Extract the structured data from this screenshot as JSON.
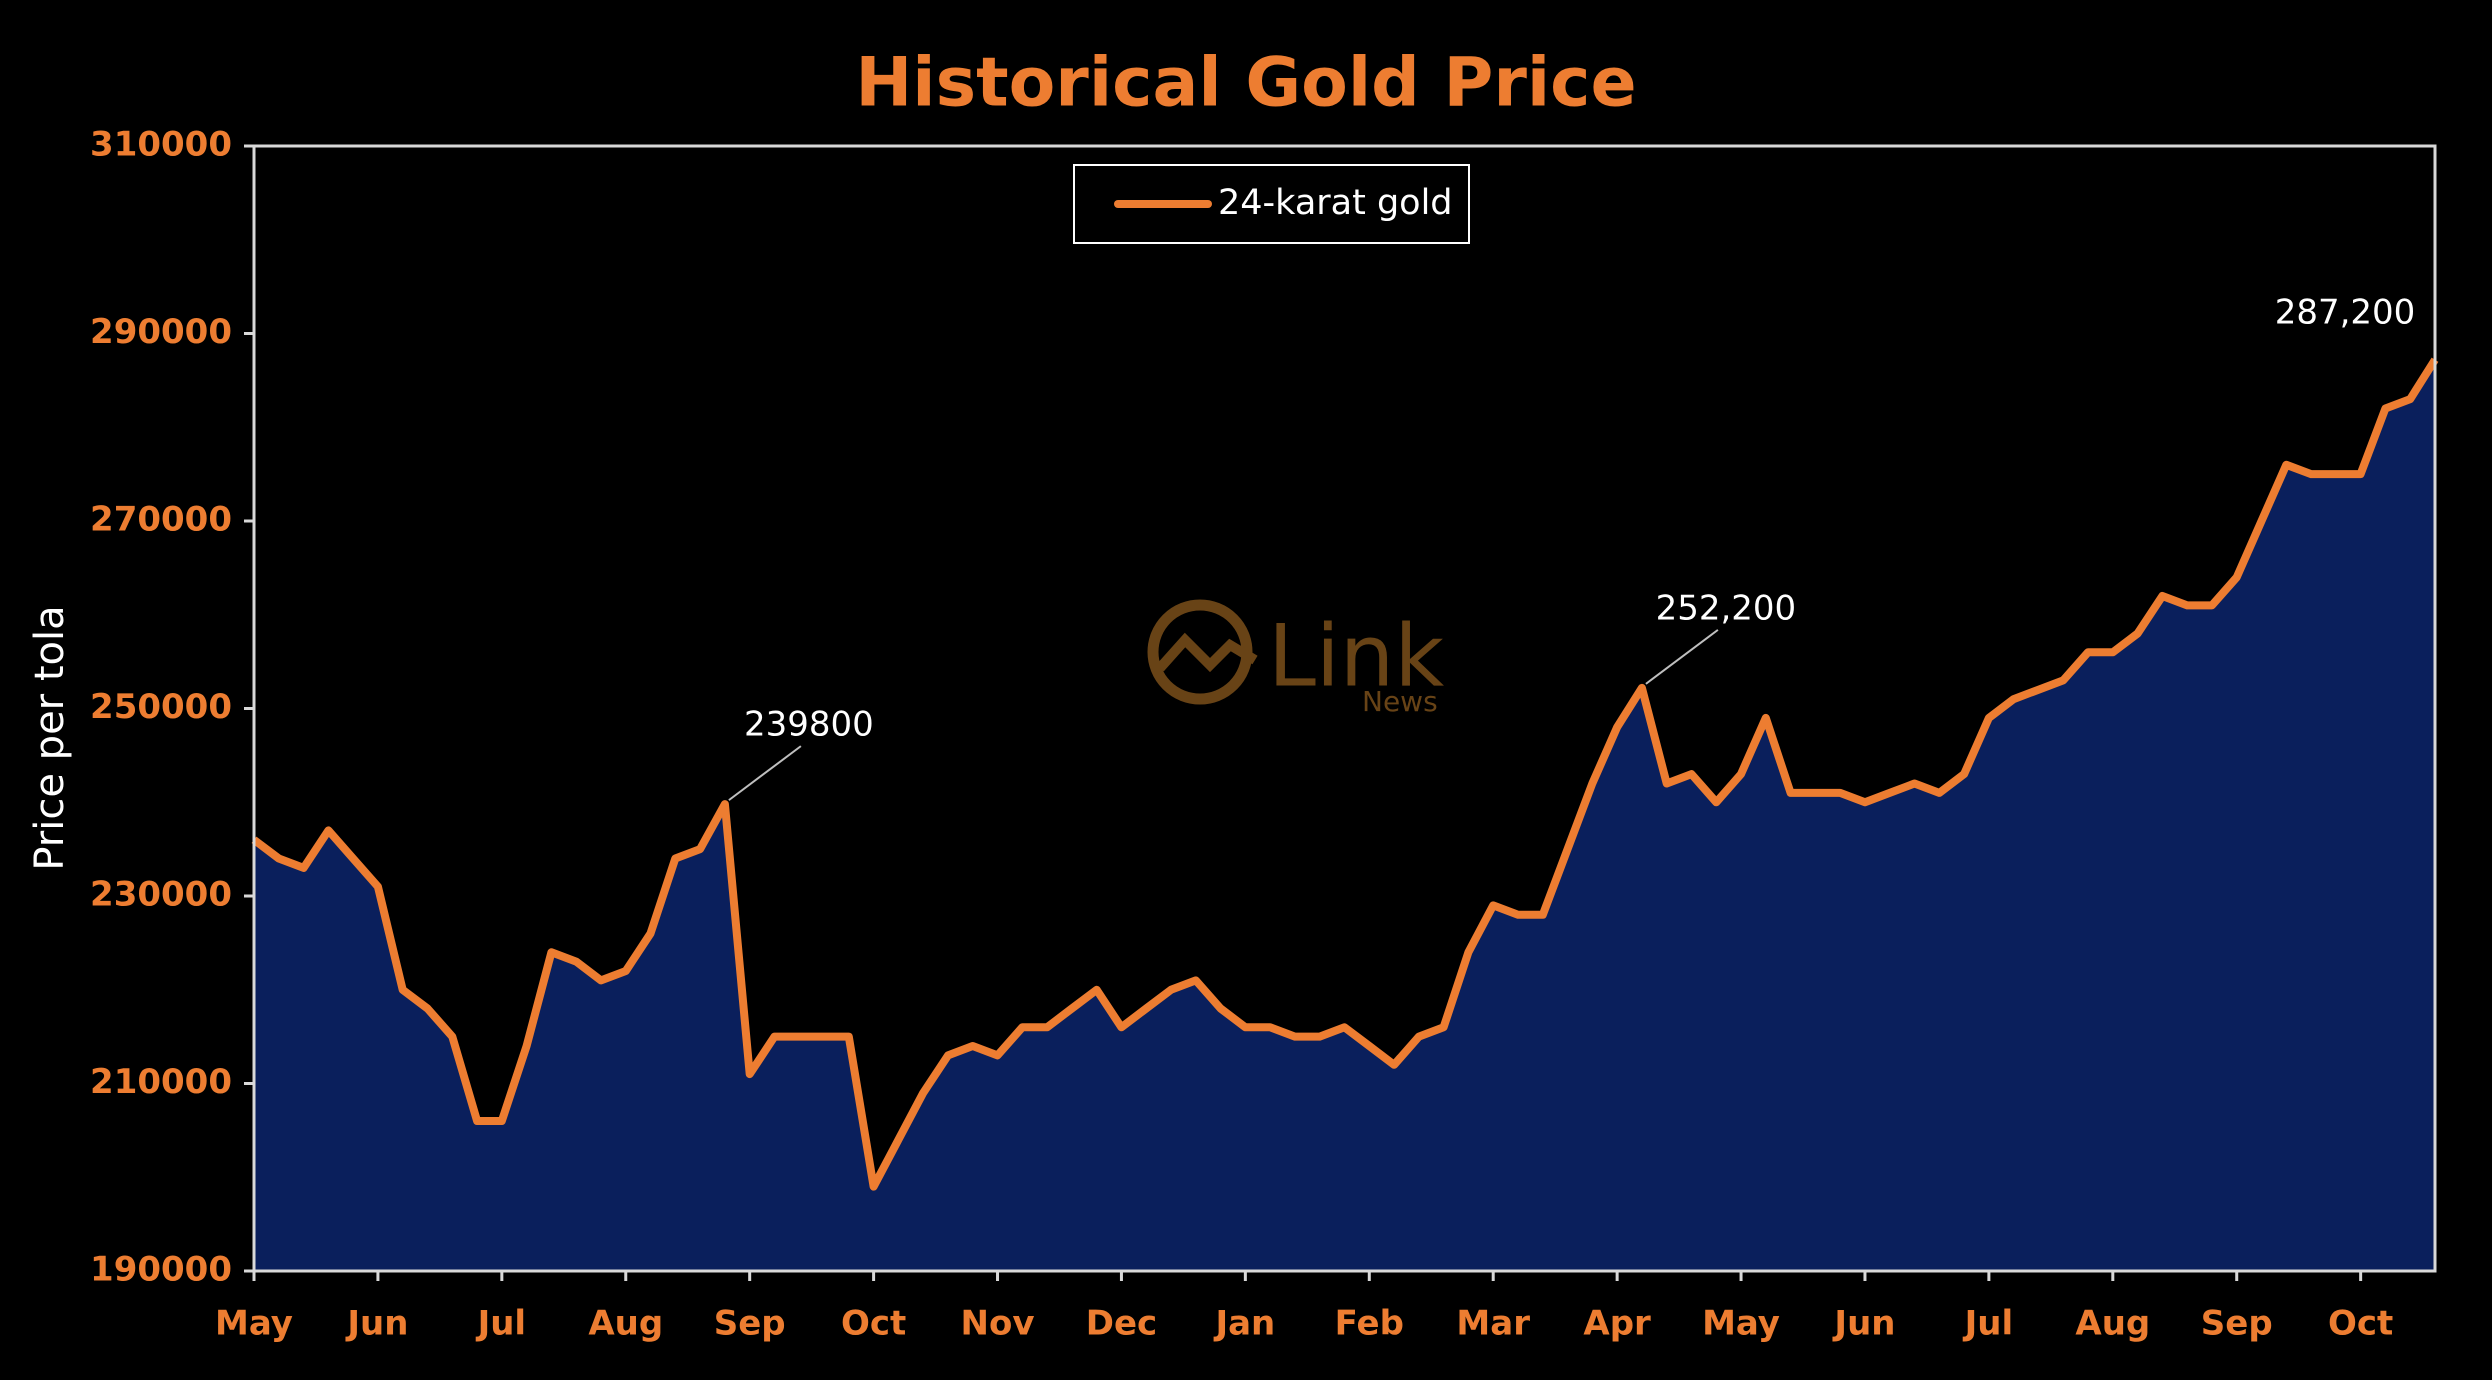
{
  "chart_data": {
    "type": "area-line",
    "title": "Historical Gold Price",
    "y_label": "Price per tola",
    "watermark": {
      "name": "Link",
      "sub": "News"
    },
    "xlim": [
      0,
      17.6
    ],
    "xticks": [
      {
        "value": 0,
        "label": "May"
      },
      {
        "value": 1,
        "label": "Jun"
      },
      {
        "value": 2,
        "label": "Jul"
      },
      {
        "value": 3,
        "label": "Aug"
      },
      {
        "value": 4,
        "label": "Sep"
      },
      {
        "value": 5,
        "label": "Oct"
      },
      {
        "value": 6,
        "label": "Nov"
      },
      {
        "value": 7,
        "label": "Dec"
      },
      {
        "value": 8,
        "label": "Jan"
      },
      {
        "value": 9,
        "label": "Feb"
      },
      {
        "value": 10,
        "label": "Mar"
      },
      {
        "value": 11,
        "label": "Apr"
      },
      {
        "value": 12,
        "label": "May"
      },
      {
        "value": 13,
        "label": "Jun"
      },
      {
        "value": 14,
        "label": "Jul"
      },
      {
        "value": 15,
        "label": "Aug"
      },
      {
        "value": 16,
        "label": "Sep"
      },
      {
        "value": 17,
        "label": "Oct"
      }
    ],
    "ylim": [
      190000,
      310000
    ],
    "yticks": [
      190000,
      210000,
      230000,
      250000,
      270000,
      290000,
      310000
    ],
    "legend": "top-center",
    "x": [
      0,
      0.2,
      0.4,
      0.6,
      0.8,
      1,
      1.2,
      1.4,
      1.6,
      1.8,
      2,
      2.2,
      2.4,
      2.6,
      2.8,
      3,
      3.2,
      3.4,
      3.6,
      3.8,
      4,
      4.2,
      4.4,
      4.6,
      4.8,
      5,
      5.2,
      5.4,
      5.6,
      5.8,
      6,
      6.2,
      6.4,
      6.6,
      6.8,
      7,
      7.2,
      7.4,
      7.6,
      7.8,
      8,
      8.2,
      8.4,
      8.6,
      8.8,
      9,
      9.2,
      9.4,
      9.6,
      9.8,
      10,
      10.2,
      10.4,
      10.6,
      10.8,
      11,
      11.2,
      11.4,
      11.6,
      11.8,
      12,
      12.2,
      12.4,
      12.6,
      12.8,
      13,
      13.2,
      13.4,
      13.6,
      13.8,
      14,
      14.2,
      14.4,
      14.6,
      14.8,
      15,
      15.2,
      15.4,
      15.6,
      15.8,
      16,
      16.2,
      16.4,
      16.6,
      16.8,
      17,
      17.2,
      17.4,
      17.6
    ],
    "series": [
      {
        "name": "24-karat gold",
        "color": "#ED7D31",
        "fill": "#0A1F5C",
        "values": [
          236000,
          234000,
          233000,
          237000,
          234000,
          231000,
          220000,
          218000,
          215000,
          206000,
          206000,
          214000,
          224000,
          223000,
          221000,
          222000,
          226000,
          234000,
          235000,
          239800,
          211000,
          215000,
          215000,
          215000,
          215000,
          199000,
          204000,
          209000,
          213000,
          214000,
          213000,
          216000,
          216000,
          218000,
          220000,
          216000,
          218000,
          220000,
          221000,
          218000,
          216000,
          216000,
          215000,
          215000,
          216000,
          214000,
          212000,
          215000,
          216000,
          224000,
          229000,
          228000,
          228000,
          235000,
          242000,
          248000,
          252200,
          242000,
          243000,
          240000,
          243000,
          249000,
          241000,
          241000,
          241000,
          240000,
          241000,
          242000,
          241000,
          243000,
          249000,
          251000,
          252000,
          253000,
          256000,
          256000,
          258000,
          262000,
          261000,
          261000,
          264000,
          270000,
          276000,
          275000,
          275000,
          275000,
          282000,
          283000,
          287200
        ],
        "value_labels": [
          null,
          null,
          null,
          null,
          null,
          null,
          null,
          null,
          null,
          null,
          null,
          null,
          null,
          null,
          null,
          null,
          null,
          null,
          null,
          "239800",
          null,
          null,
          null,
          null,
          null,
          null,
          null,
          null,
          null,
          null,
          null,
          null,
          null,
          null,
          null,
          null,
          null,
          null,
          null,
          null,
          null,
          null,
          null,
          null,
          null,
          null,
          null,
          null,
          null,
          null,
          null,
          null,
          null,
          null,
          null,
          null,
          "252,200",
          null,
          null,
          null,
          null,
          null,
          null,
          null,
          null,
          null,
          null,
          null,
          null,
          null,
          null,
          null,
          null,
          null,
          null,
          null,
          null,
          null,
          null,
          null,
          null,
          null,
          null,
          null,
          null,
          null,
          null,
          null,
          "287,200"
        ]
      }
    ]
  }
}
